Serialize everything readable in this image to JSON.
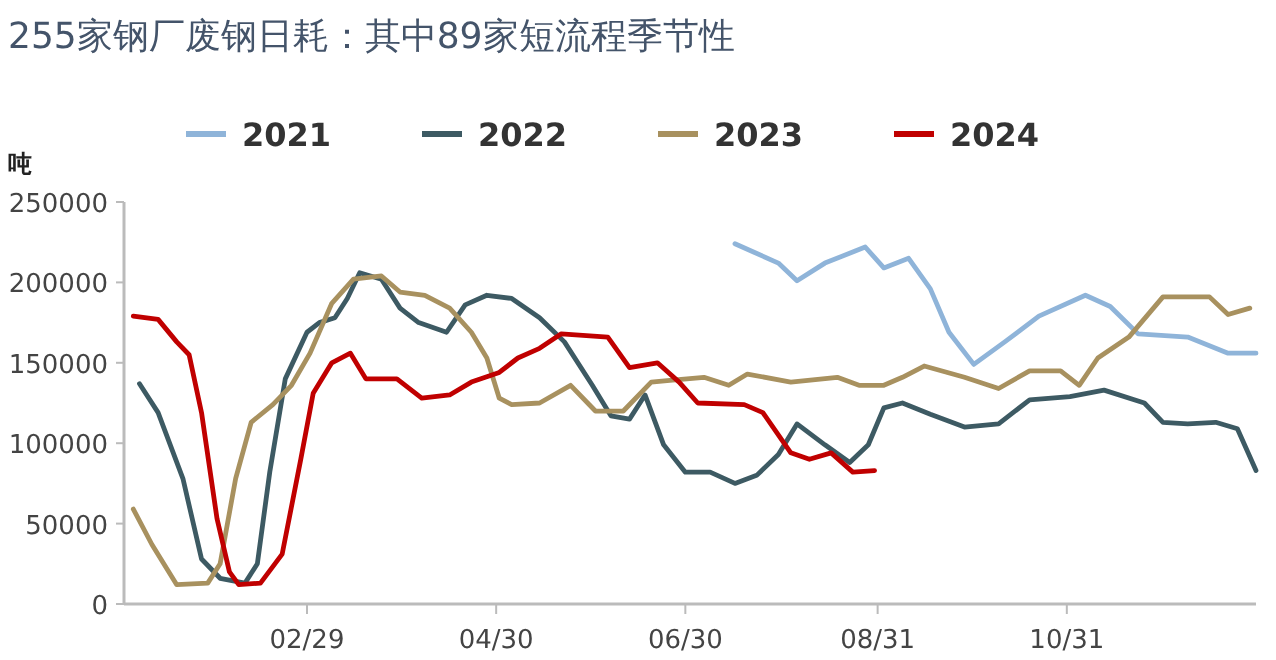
{
  "chart_data": {
    "type": "line",
    "title": "255家钢厂废钢日耗：其中89家短流程季节性",
    "ylabel": "吨",
    "legend": "top",
    "xlim": [
      "--01-01",
      "--12-31"
    ],
    "xticks": [
      {
        "value": "--02-29",
        "label": "02/29"
      },
      {
        "value": "--04-30",
        "label": "04/30"
      },
      {
        "value": "--06-30",
        "label": "06/30"
      },
      {
        "value": "--08-31",
        "label": "08/31"
      },
      {
        "value": "--10-31",
        "label": "10/31"
      }
    ],
    "ylim": [
      0,
      250000
    ],
    "yticks": [
      0,
      50000,
      100000,
      150000,
      200000,
      250000
    ],
    "series": [
      {
        "name": "2021",
        "color": "#8fb4d9",
        "x": [
          "--07-16",
          "--07-30",
          "--08-05",
          "--08-14",
          "--08-27",
          "--09-02",
          "--09-10",
          "--09-17",
          "--09-23",
          "--10-01",
          "--10-11",
          "--10-22",
          "--11-06",
          "--11-14",
          "--11-23",
          "--12-09",
          "--12-22",
          "--12-31"
        ],
        "values": [
          224000,
          212000,
          201000,
          212000,
          222000,
          209000,
          215000,
          196000,
          169000,
          149000,
          163000,
          179000,
          192000,
          185000,
          168000,
          166000,
          156000,
          156000
        ]
      },
      {
        "name": "2022",
        "color": "#3d5a63",
        "x": [
          "--01-06",
          "--01-12",
          "--01-20",
          "--01-26",
          "--02-01",
          "--02-09",
          "--02-13",
          "--02-17",
          "--02-22",
          "--02-29",
          "--03-04",
          "--03-09",
          "--03-13",
          "--03-17",
          "--03-24",
          "--03-30",
          "--04-05",
          "--04-14",
          "--04-20",
          "--04-27",
          "--05-05",
          "--05-14",
          "--05-22",
          "--05-31",
          "--06-06",
          "--06-12",
          "--06-17",
          "--06-23",
          "--06-30",
          "--07-08",
          "--07-16",
          "--07-23",
          "--07-30",
          "--08-05",
          "--08-14",
          "--08-22",
          "--08-28",
          "--09-02",
          "--09-08",
          "--09-17",
          "--09-28",
          "--10-09",
          "--10-19",
          "--11-01",
          "--11-12",
          "--11-25",
          "--12-01",
          "--12-09",
          "--12-18",
          "--12-25",
          "--12-31"
        ],
        "values": [
          137000,
          119000,
          78000,
          28000,
          16000,
          13000,
          25000,
          82000,
          140000,
          169000,
          175000,
          178000,
          190000,
          206000,
          202000,
          184000,
          175000,
          169000,
          186000,
          192000,
          190000,
          178000,
          163000,
          136000,
          117000,
          115000,
          130000,
          99000,
          82000,
          82000,
          75000,
          80000,
          93000,
          112000,
          99000,
          88000,
          99000,
          122000,
          125000,
          118000,
          110000,
          112000,
          127000,
          129000,
          133000,
          125000,
          113000,
          112000,
          113000,
          109000,
          83000
        ]
      },
      {
        "name": "2023",
        "color": "#a8915f",
        "x": [
          "--01-04",
          "--01-10",
          "--01-18",
          "--01-28",
          "--02-01",
          "--02-06",
          "--02-11",
          "--02-18",
          "--02-24",
          "--03-01",
          "--03-08",
          "--03-15",
          "--03-24",
          "--03-30",
          "--04-07",
          "--04-15",
          "--04-22",
          "--04-27",
          "--05-01",
          "--05-05",
          "--05-14",
          "--05-24",
          "--06-01",
          "--06-10",
          "--06-19",
          "--06-25",
          "--07-06",
          "--07-14",
          "--07-20",
          "--08-03",
          "--08-18",
          "--08-25",
          "--09-02",
          "--09-08",
          "--09-15",
          "--09-28",
          "--10-09",
          "--10-19",
          "--10-29",
          "--11-04",
          "--11-10",
          "--11-20",
          "--12-01",
          "--12-16",
          "--12-22",
          "--12-29"
        ],
        "values": [
          59000,
          37000,
          12000,
          13000,
          25000,
          78000,
          113000,
          124000,
          136000,
          156000,
          187000,
          202000,
          204000,
          194000,
          192000,
          184000,
          169000,
          153000,
          128000,
          124000,
          125000,
          136000,
          120000,
          120000,
          138000,
          139000,
          141000,
          136000,
          143000,
          138000,
          141000,
          136000,
          136000,
          141000,
          148000,
          141000,
          134000,
          145000,
          145000,
          136000,
          153000,
          166000,
          191000,
          191000,
          180000,
          184000
        ]
      },
      {
        "name": "2024",
        "color": "#c00000",
        "x": [
          "--01-04",
          "--01-12",
          "--01-18",
          "--01-22",
          "--01-26",
          "--01-31",
          "--02-04",
          "--02-07",
          "--02-14",
          "--02-21",
          "--02-27",
          "--03-02",
          "--03-08",
          "--03-14",
          "--03-19",
          "--03-29",
          "--04-06",
          "--04-15",
          "--04-22",
          "--05-01",
          "--05-07",
          "--05-14",
          "--05-21",
          "--06-05",
          "--06-12",
          "--06-21",
          "--06-28",
          "--07-04",
          "--07-19",
          "--07-25",
          "--08-03",
          "--08-09",
          "--08-16",
          "--08-23",
          "--08-30"
        ],
        "values": [
          179000,
          177000,
          163000,
          155000,
          119000,
          53000,
          20000,
          12000,
          13000,
          31000,
          90000,
          131000,
          150000,
          156000,
          140000,
          140000,
          128000,
          130000,
          138000,
          144000,
          153000,
          159000,
          168000,
          166000,
          147000,
          150000,
          138000,
          125000,
          124000,
          119000,
          94000,
          90000,
          94000,
          82000,
          83000
        ]
      }
    ]
  }
}
